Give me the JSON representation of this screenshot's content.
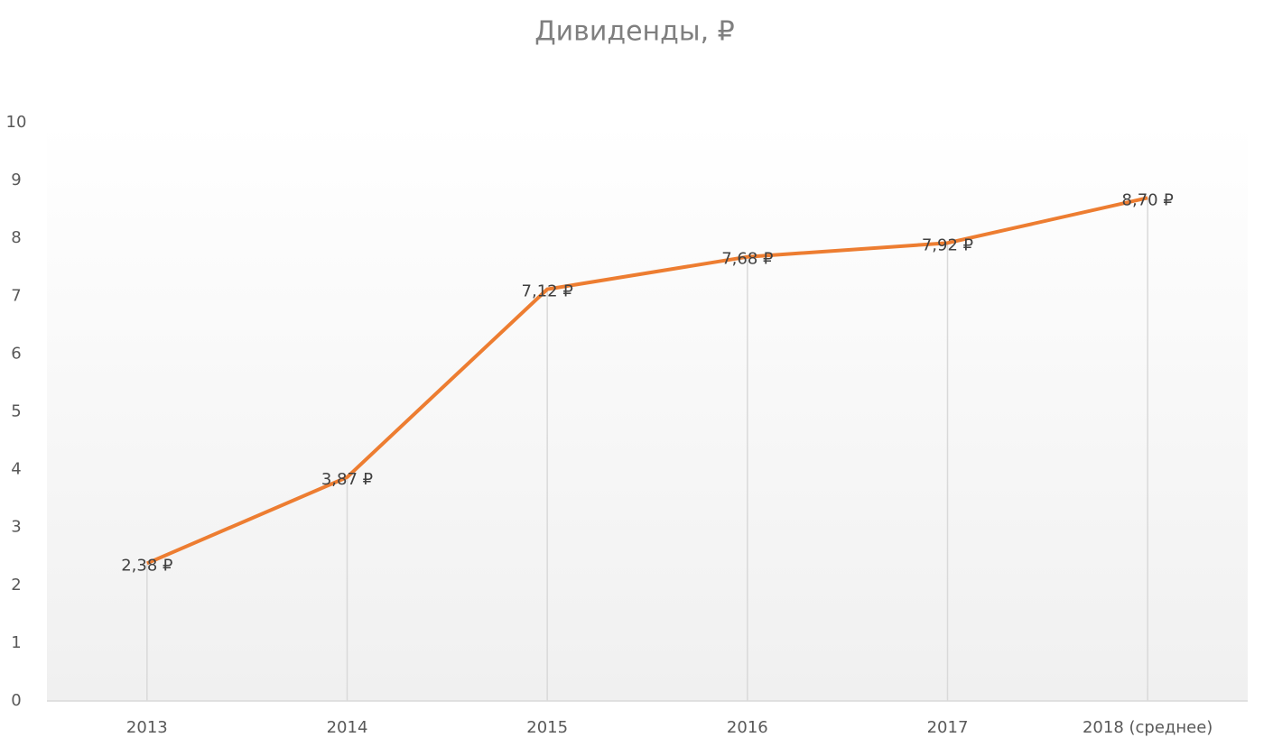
{
  "chart_data": {
    "type": "line",
    "title": "Дивиденды, ₽",
    "categories": [
      "2013",
      "2014",
      "2015",
      "2016",
      "2017",
      "2018 (среднее)"
    ],
    "series": [
      {
        "name": "Дивиденды",
        "color": "#ed7d31",
        "values": [
          2.38,
          3.87,
          7.12,
          7.68,
          7.92,
          8.7
        ],
        "value_labels": [
          "2,38 ₽",
          "3,87 ₽",
          "7,12 ₽",
          "7,68 ₽",
          "7,92 ₽",
          "8,70 ₽"
        ]
      }
    ],
    "ylim": [
      0,
      10
    ],
    "yticks": [
      0,
      1,
      2,
      3,
      4,
      5,
      6,
      7,
      8,
      9,
      10
    ],
    "drop_lines": true
  }
}
